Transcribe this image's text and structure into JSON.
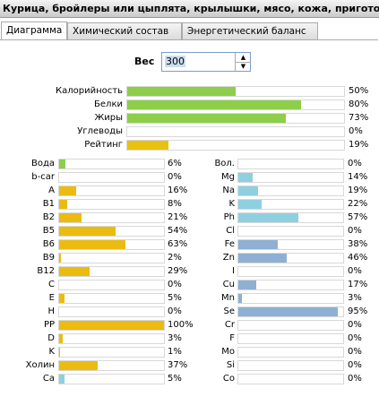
{
  "title": "Курица, бройлеры или цыплята, крылышки, мясо, кожа, приготовл...",
  "tabs": [
    "Диаграмма",
    "Химический состав",
    "Энергетический баланс"
  ],
  "weight": {
    "label": "Вес",
    "value": "300"
  },
  "summary": [
    {
      "label": "Калорийность",
      "value": 50,
      "value_label": "50%",
      "color": "#8dce4a"
    },
    {
      "label": "Белки",
      "value": 80,
      "value_label": "80%",
      "color": "#8dce4a"
    },
    {
      "label": "Жиры",
      "value": 73,
      "value_label": "73%",
      "color": "#8dce4a"
    },
    {
      "label": "Углеводы",
      "value": 0,
      "value_label": "0%",
      "color": "#8dce4a"
    },
    {
      "label": "Рейтинг",
      "value": 19,
      "value_label": "19%",
      "color": "#e8c20f"
    }
  ],
  "vitamins": [
    {
      "label": "Вода",
      "value": 6,
      "value_label": "6%",
      "color": "#8dce4a"
    },
    {
      "label": "b-car",
      "value": 0,
      "value_label": "0%",
      "color": "#ebbb10"
    },
    {
      "label": "A",
      "value": 16,
      "value_label": "16%",
      "color": "#ebbb10"
    },
    {
      "label": "B1",
      "value": 8,
      "value_label": "8%",
      "color": "#ebbb10"
    },
    {
      "label": "B2",
      "value": 21,
      "value_label": "21%",
      "color": "#ebbb10"
    },
    {
      "label": "B5",
      "value": 54,
      "value_label": "54%",
      "color": "#ebbb10"
    },
    {
      "label": "B6",
      "value": 63,
      "value_label": "63%",
      "color": "#ebbb10"
    },
    {
      "label": "B9",
      "value": 2,
      "value_label": "2%",
      "color": "#ebbb10"
    },
    {
      "label": "B12",
      "value": 29,
      "value_label": "29%",
      "color": "#ebbb10"
    },
    {
      "label": "C",
      "value": 0,
      "value_label": "0%",
      "color": "#ebbb10"
    },
    {
      "label": "E",
      "value": 5,
      "value_label": "5%",
      "color": "#ebbb10"
    },
    {
      "label": "H",
      "value": 0,
      "value_label": "0%",
      "color": "#ebbb10"
    },
    {
      "label": "PP",
      "value": 100,
      "value_label": "100%",
      "color": "#ebbb10"
    },
    {
      "label": "D",
      "value": 3,
      "value_label": "3%",
      "color": "#ebbb10"
    },
    {
      "label": "K",
      "value": 1,
      "value_label": "1%",
      "color": "#ebbb10"
    },
    {
      "label": "Холин",
      "value": 37,
      "value_label": "37%",
      "color": "#ebbb10"
    },
    {
      "label": "Ca",
      "value": 5,
      "value_label": "5%",
      "color": "#8fd0e0"
    }
  ],
  "minerals": [
    {
      "label": "Вол.",
      "value": 0,
      "value_label": "0%",
      "color": "#8fd0e0"
    },
    {
      "label": "Mg",
      "value": 14,
      "value_label": "14%",
      "color": "#8fd0e0"
    },
    {
      "label": "Na",
      "value": 19,
      "value_label": "19%",
      "color": "#8fd0e0"
    },
    {
      "label": "K",
      "value": 22,
      "value_label": "22%",
      "color": "#8fd0e0"
    },
    {
      "label": "Ph",
      "value": 57,
      "value_label": "57%",
      "color": "#8fd0e0"
    },
    {
      "label": "Cl",
      "value": 0,
      "value_label": "0%",
      "color": "#8fd0e0"
    },
    {
      "label": "Fe",
      "value": 38,
      "value_label": "38%",
      "color": "#8fb0d4"
    },
    {
      "label": "Zn",
      "value": 46,
      "value_label": "46%",
      "color": "#8fb0d4"
    },
    {
      "label": "I",
      "value": 0,
      "value_label": "0%",
      "color": "#8fb0d4"
    },
    {
      "label": "Cu",
      "value": 17,
      "value_label": "17%",
      "color": "#8fb0d4"
    },
    {
      "label": "Mn",
      "value": 3,
      "value_label": "3%",
      "color": "#8fb0d4"
    },
    {
      "label": "Se",
      "value": 95,
      "value_label": "95%",
      "color": "#8fb0d4"
    },
    {
      "label": "Cr",
      "value": 0,
      "value_label": "0%",
      "color": "#8fb0d4"
    },
    {
      "label": "F",
      "value": 0,
      "value_label": "0%",
      "color": "#8fb0d4"
    },
    {
      "label": "Mo",
      "value": 0,
      "value_label": "0%",
      "color": "#8fb0d4"
    },
    {
      "label": "Si",
      "value": 0,
      "value_label": "0%",
      "color": "#8fb0d4"
    },
    {
      "label": "Co",
      "value": 0,
      "value_label": "0%",
      "color": "#8fb0d4"
    }
  ]
}
